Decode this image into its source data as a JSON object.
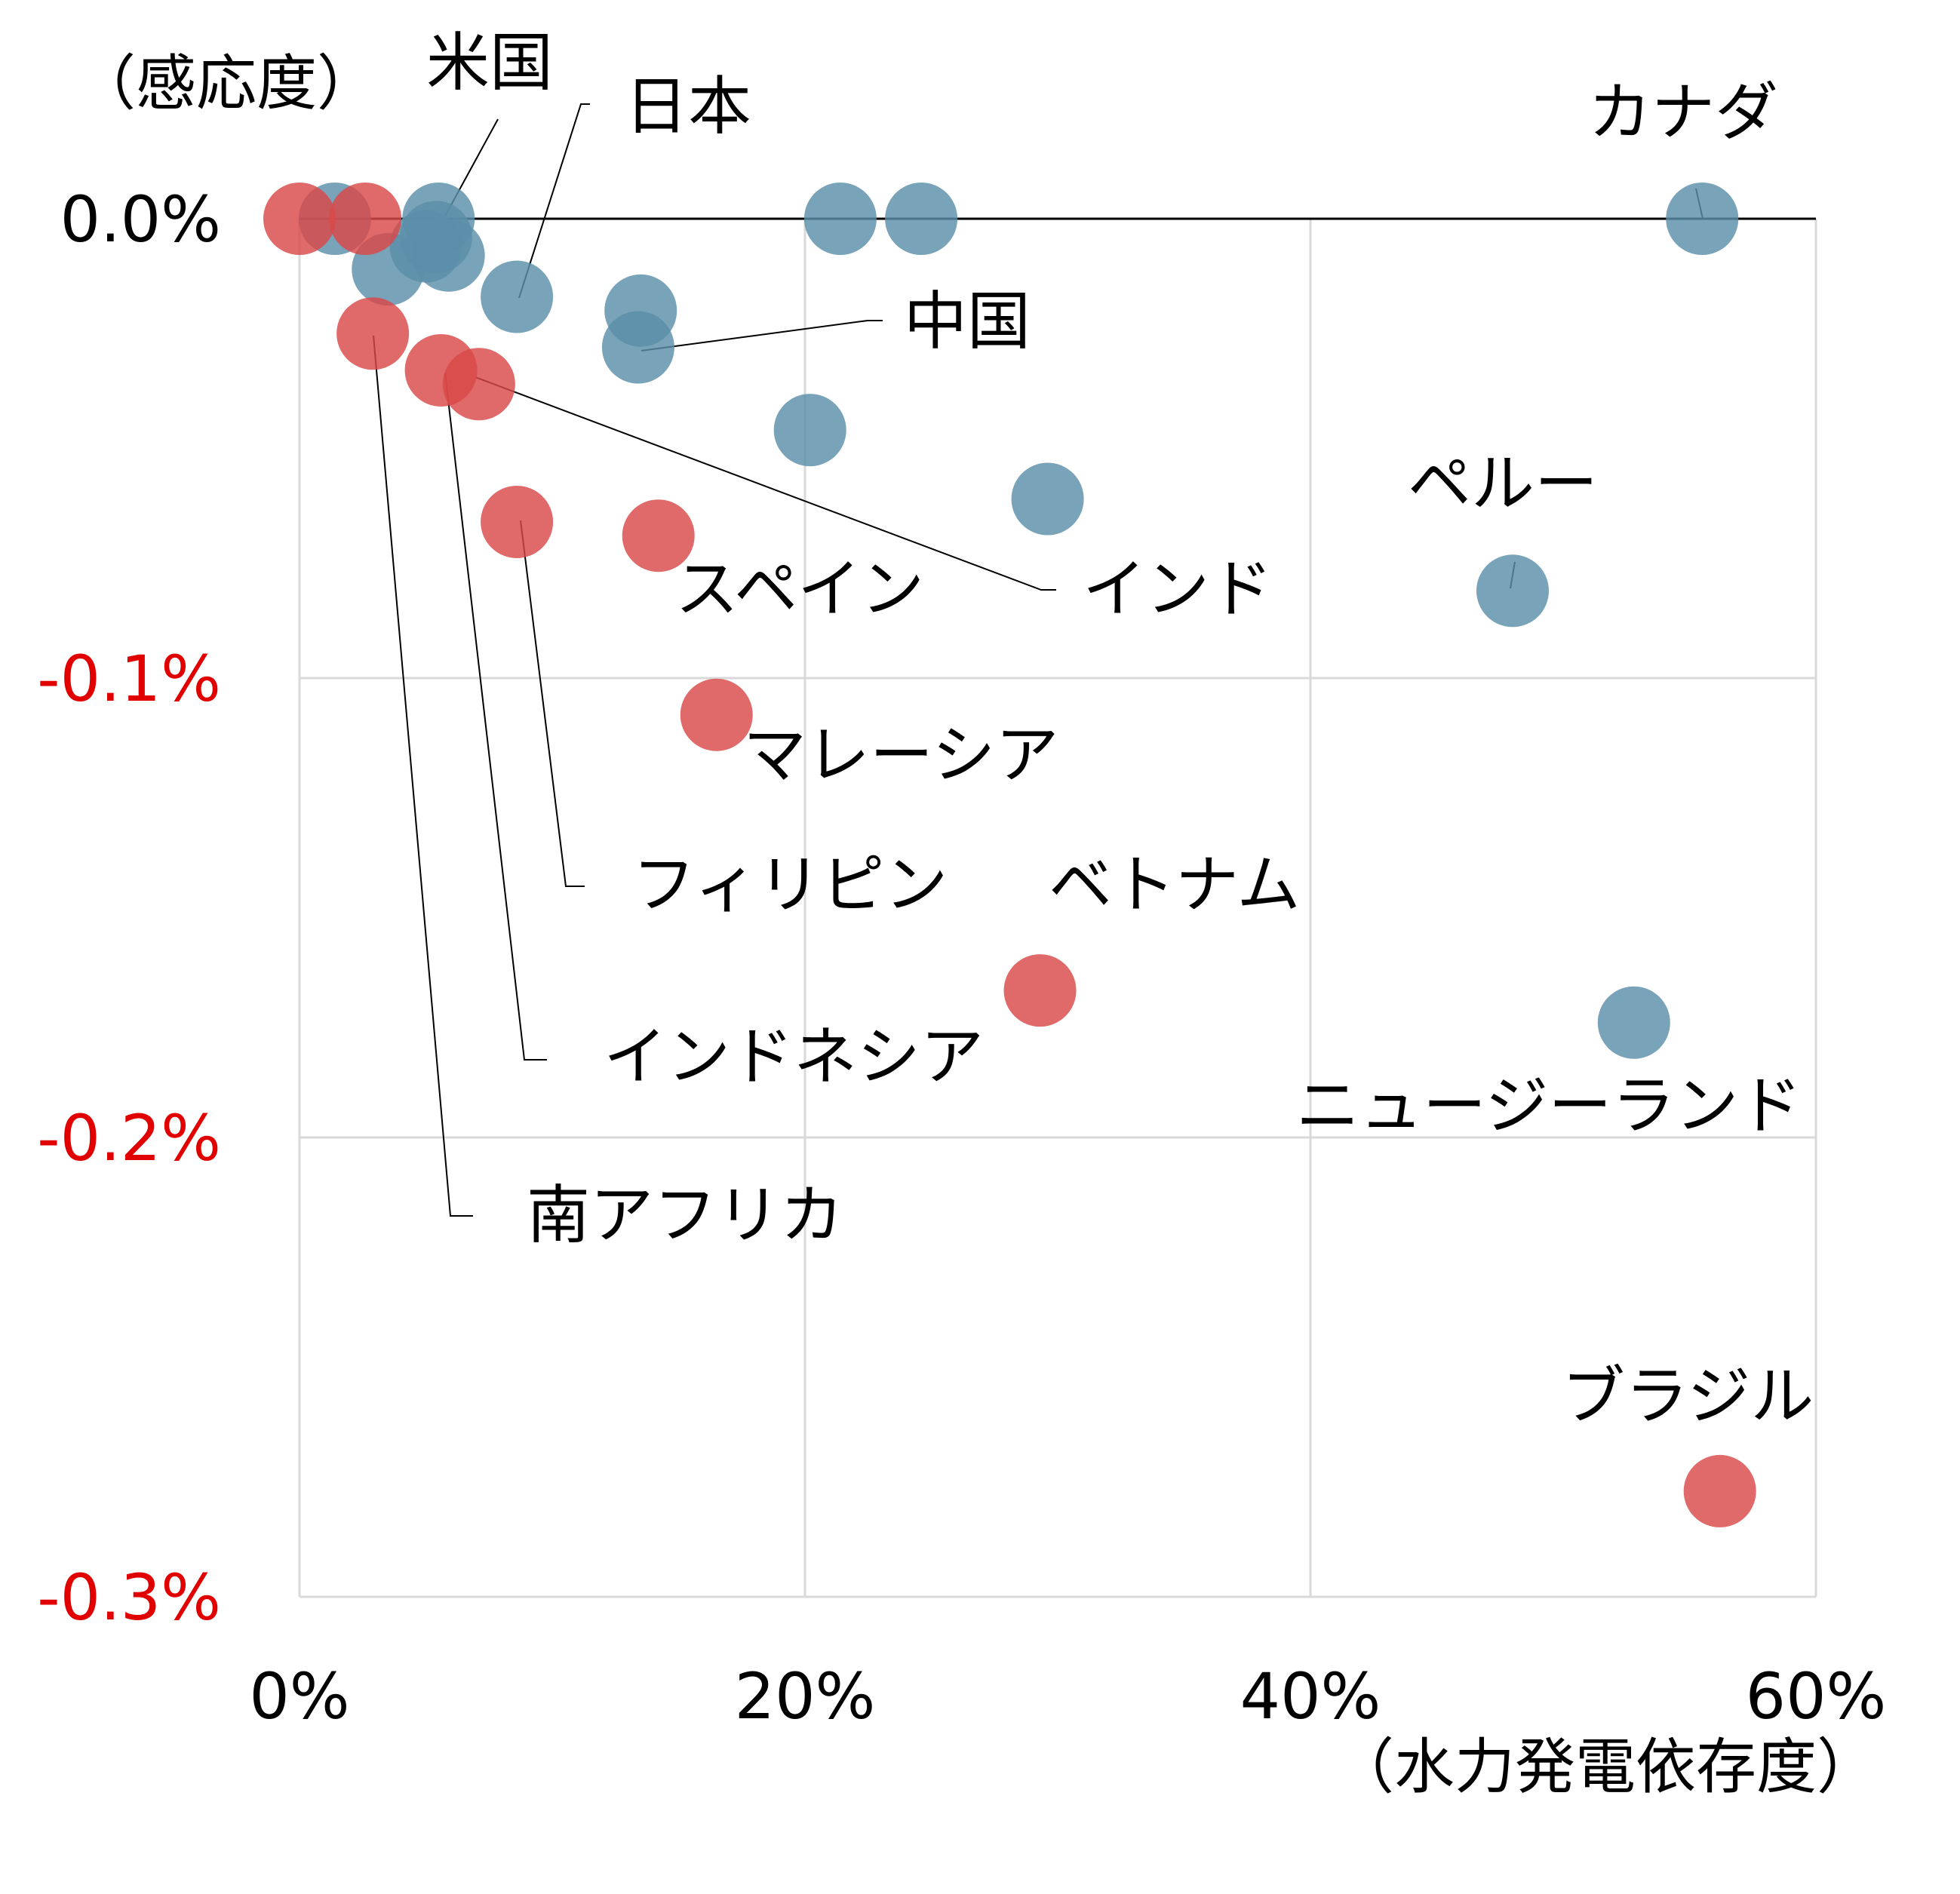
{
  "chart_data": {
    "type": "scatter",
    "title": "",
    "xlabel": "（水力発電依存度）",
    "ylabel": "（感応度）",
    "xlim": [
      0,
      60
    ],
    "ylim": [
      -0.3,
      0.0
    ],
    "x_ticks": [
      "0%",
      "20%",
      "40%",
      "60%"
    ],
    "y_ticks": [
      "0.0%",
      "-0.1%",
      "-0.2%",
      "-0.3%"
    ],
    "grid": true,
    "colors": {
      "blue": "#5b8fa8",
      "red": "#d94848",
      "negative_tick": "#e00000",
      "positive_tick": "#000000"
    },
    "series": [
      {
        "color": "blue",
        "points": [
          {
            "x": 1.4,
            "y": 0.0
          },
          {
            "x": 5.5,
            "y": 0.0,
            "label": "米国"
          },
          {
            "x": 5.4,
            "y": -0.004
          },
          {
            "x": 5.0,
            "y": -0.006
          },
          {
            "x": 5.9,
            "y": -0.008
          },
          {
            "x": 3.5,
            "y": -0.011
          },
          {
            "x": 8.6,
            "y": -0.017,
            "label": "日本"
          },
          {
            "x": 13.5,
            "y": -0.02
          },
          {
            "x": 13.4,
            "y": -0.028,
            "label": "中国"
          },
          {
            "x": 21.4,
            "y": 0.0
          },
          {
            "x": 24.6,
            "y": 0.0
          },
          {
            "x": 20.2,
            "y": -0.046
          },
          {
            "x": 29.6,
            "y": -0.061
          },
          {
            "x": 55.5,
            "y": 0.0,
            "label": "カナダ"
          },
          {
            "x": 48.0,
            "y": -0.081,
            "label": "ペルー"
          },
          {
            "x": 52.8,
            "y": -0.175,
            "label": "ニュージーランド"
          }
        ]
      },
      {
        "color": "red",
        "points": [
          {
            "x": 0.0,
            "y": 0.0
          },
          {
            "x": 2.6,
            "y": 0.0
          },
          {
            "x": 2.9,
            "y": -0.025,
            "label": "南アフリカ"
          },
          {
            "x": 5.6,
            "y": -0.033,
            "label": "インドネシア"
          },
          {
            "x": 7.1,
            "y": -0.036,
            "label": "インド"
          },
          {
            "x": 8.6,
            "y": -0.066,
            "label": "フィリピン"
          },
          {
            "x": 14.2,
            "y": -0.069,
            "label": "スペイン"
          },
          {
            "x": 16.5,
            "y": -0.108,
            "label": "マレーシア"
          },
          {
            "x": 29.3,
            "y": -0.168,
            "label": "ベトナム"
          },
          {
            "x": 56.2,
            "y": -0.277,
            "label": "ブラジル"
          }
        ]
      }
    ]
  }
}
